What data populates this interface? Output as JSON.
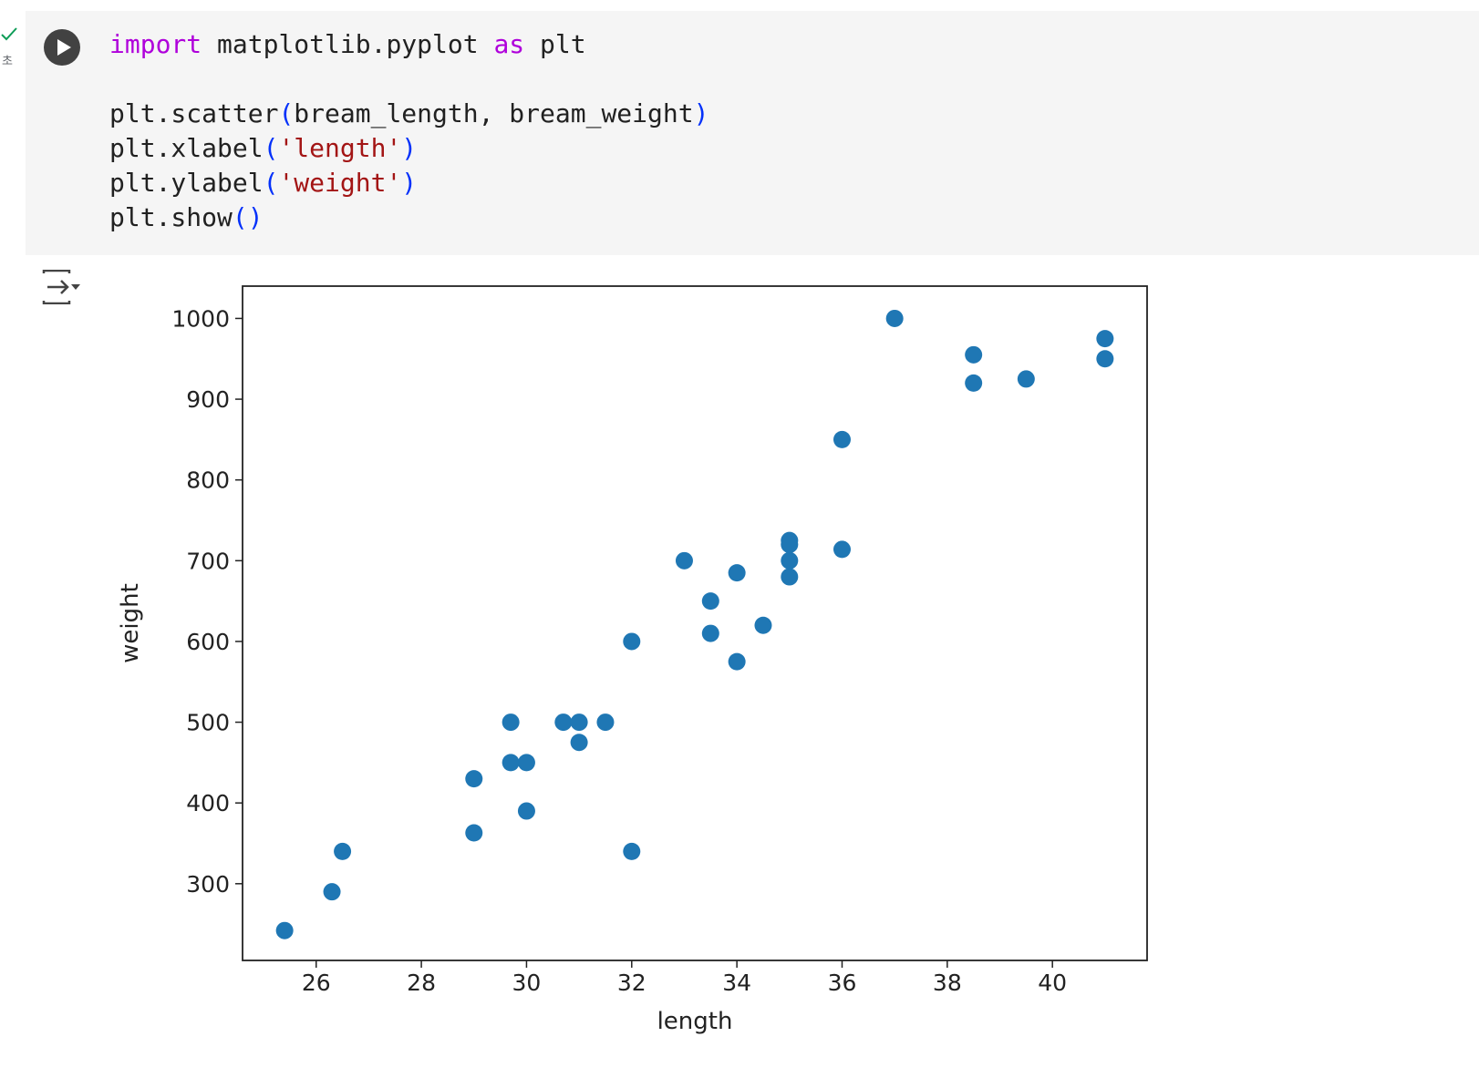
{
  "cell": {
    "status_time": "초",
    "code_lines": [
      [
        {
          "t": "import",
          "c": "kw"
        },
        {
          "t": " matplotlib.pyplot ",
          "c": "plain"
        },
        {
          "t": "as",
          "c": "kw"
        },
        {
          "t": " plt",
          "c": "plain"
        }
      ],
      [],
      [
        {
          "t": "plt.scatter",
          "c": "plain"
        },
        {
          "t": "(",
          "c": "paren"
        },
        {
          "t": "bream_length, bream_weight",
          "c": "plain"
        },
        {
          "t": ")",
          "c": "paren"
        }
      ],
      [
        {
          "t": "plt.xlabel",
          "c": "plain"
        },
        {
          "t": "(",
          "c": "paren"
        },
        {
          "t": "'length'",
          "c": "str"
        },
        {
          "t": ")",
          "c": "paren"
        }
      ],
      [
        {
          "t": "plt.ylabel",
          "c": "plain"
        },
        {
          "t": "(",
          "c": "paren"
        },
        {
          "t": "'weight'",
          "c": "str"
        },
        {
          "t": ")",
          "c": "paren"
        }
      ],
      [
        {
          "t": "plt.show",
          "c": "plain"
        },
        {
          "t": "()",
          "c": "paren"
        }
      ]
    ]
  },
  "icons": {
    "run": "play-icon",
    "output": "output-toggle-icon",
    "status": "check-icon"
  },
  "colors": {
    "cell_bg": "#f5f5f5",
    "keyword": "#af00db",
    "string": "#a31515",
    "paren": "#0431fa",
    "marker": "#1f77b4",
    "status_ok": "#0f9d58"
  },
  "chart_data": {
    "type": "scatter",
    "title": "",
    "xlabel": "length",
    "ylabel": "weight",
    "xlim": [
      24.6,
      41.8
    ],
    "ylim": [
      205,
      1040
    ],
    "xticks": [
      26,
      28,
      30,
      32,
      34,
      36,
      38,
      40
    ],
    "yticks": [
      300,
      400,
      500,
      600,
      700,
      800,
      900,
      1000
    ],
    "grid": false,
    "marker_color": "#1f77b4",
    "x": [
      25.4,
      26.3,
      26.5,
      29.0,
      29.0,
      29.7,
      29.7,
      30.0,
      30.0,
      30.7,
      31.0,
      31.0,
      31.5,
      32.0,
      32.0,
      33.0,
      33.5,
      33.5,
      34.0,
      34.0,
      34.5,
      35.0,
      35.0,
      35.0,
      35.0,
      36.0,
      36.0,
      37.0,
      38.5,
      38.5,
      39.5,
      41.0,
      41.0
    ],
    "y": [
      242,
      290,
      340,
      363,
      430,
      450,
      500,
      390,
      450,
      500,
      475,
      500,
      500,
      340,
      600,
      700,
      610,
      650,
      575,
      685,
      620,
      680,
      700,
      725,
      720,
      714,
      850,
      1000,
      920,
      955,
      925,
      975,
      950
    ]
  }
}
